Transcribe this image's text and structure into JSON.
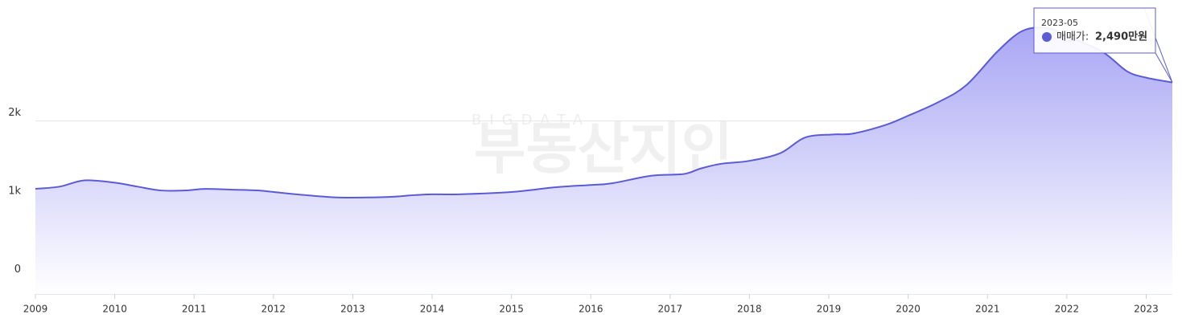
{
  "chart_data": {
    "type": "area",
    "watermark": {
      "top": "BIGDATA",
      "bottom": "부동산지인"
    },
    "x": [
      2009.0,
      2009.31,
      2009.62,
      2010.0,
      2010.28,
      2010.58,
      2010.89,
      2011.14,
      2011.5,
      2011.8,
      2012.1,
      2012.4,
      2012.8,
      2013.22,
      2013.53,
      2013.78,
      2014.0,
      2014.34,
      2015.0,
      2015.55,
      2016.0,
      2016.26,
      2016.77,
      2017.17,
      2017.38,
      2017.63,
      2018.0,
      2018.39,
      2018.7,
      2019.05,
      2019.3,
      2019.71,
      2020.0,
      2020.37,
      2020.73,
      2021.13,
      2021.44,
      2021.74,
      2022.0,
      2022.45,
      2022.76,
      2023.0,
      2023.33
    ],
    "series": [
      {
        "name": "매매가",
        "color": "#5b5bd6",
        "values": [
          1132,
          1162,
          1241,
          1211,
          1162,
          1112,
          1112,
          1132,
          1122,
          1112,
          1082,
          1053,
          1023,
          1023,
          1033,
          1053,
          1063,
          1063,
          1092,
          1152,
          1182,
          1202,
          1301,
          1321,
          1390,
          1450,
          1490,
          1589,
          1787,
          1827,
          1837,
          1946,
          2066,
          2234,
          2453,
          2890,
          3148,
          3188,
          3088,
          2880,
          2632,
          2552,
          2490
        ]
      }
    ],
    "xlim": [
      2009,
      2023.33
    ],
    "xticks": [
      2009,
      2010,
      2011,
      2012,
      2013,
      2014,
      2015,
      2016,
      2017,
      2018,
      2019,
      2020,
      2021,
      2022,
      2023
    ],
    "ylim": [
      -210,
      3440
    ],
    "yticks": [
      0,
      {
        "value": 1000,
        "label": "1k"
      },
      {
        "value": 2000,
        "label": "2k"
      }
    ],
    "grid": true,
    "tooltip": {
      "date": "2023-05",
      "series_label": "매매가:",
      "value_label": "2,490만원"
    }
  }
}
